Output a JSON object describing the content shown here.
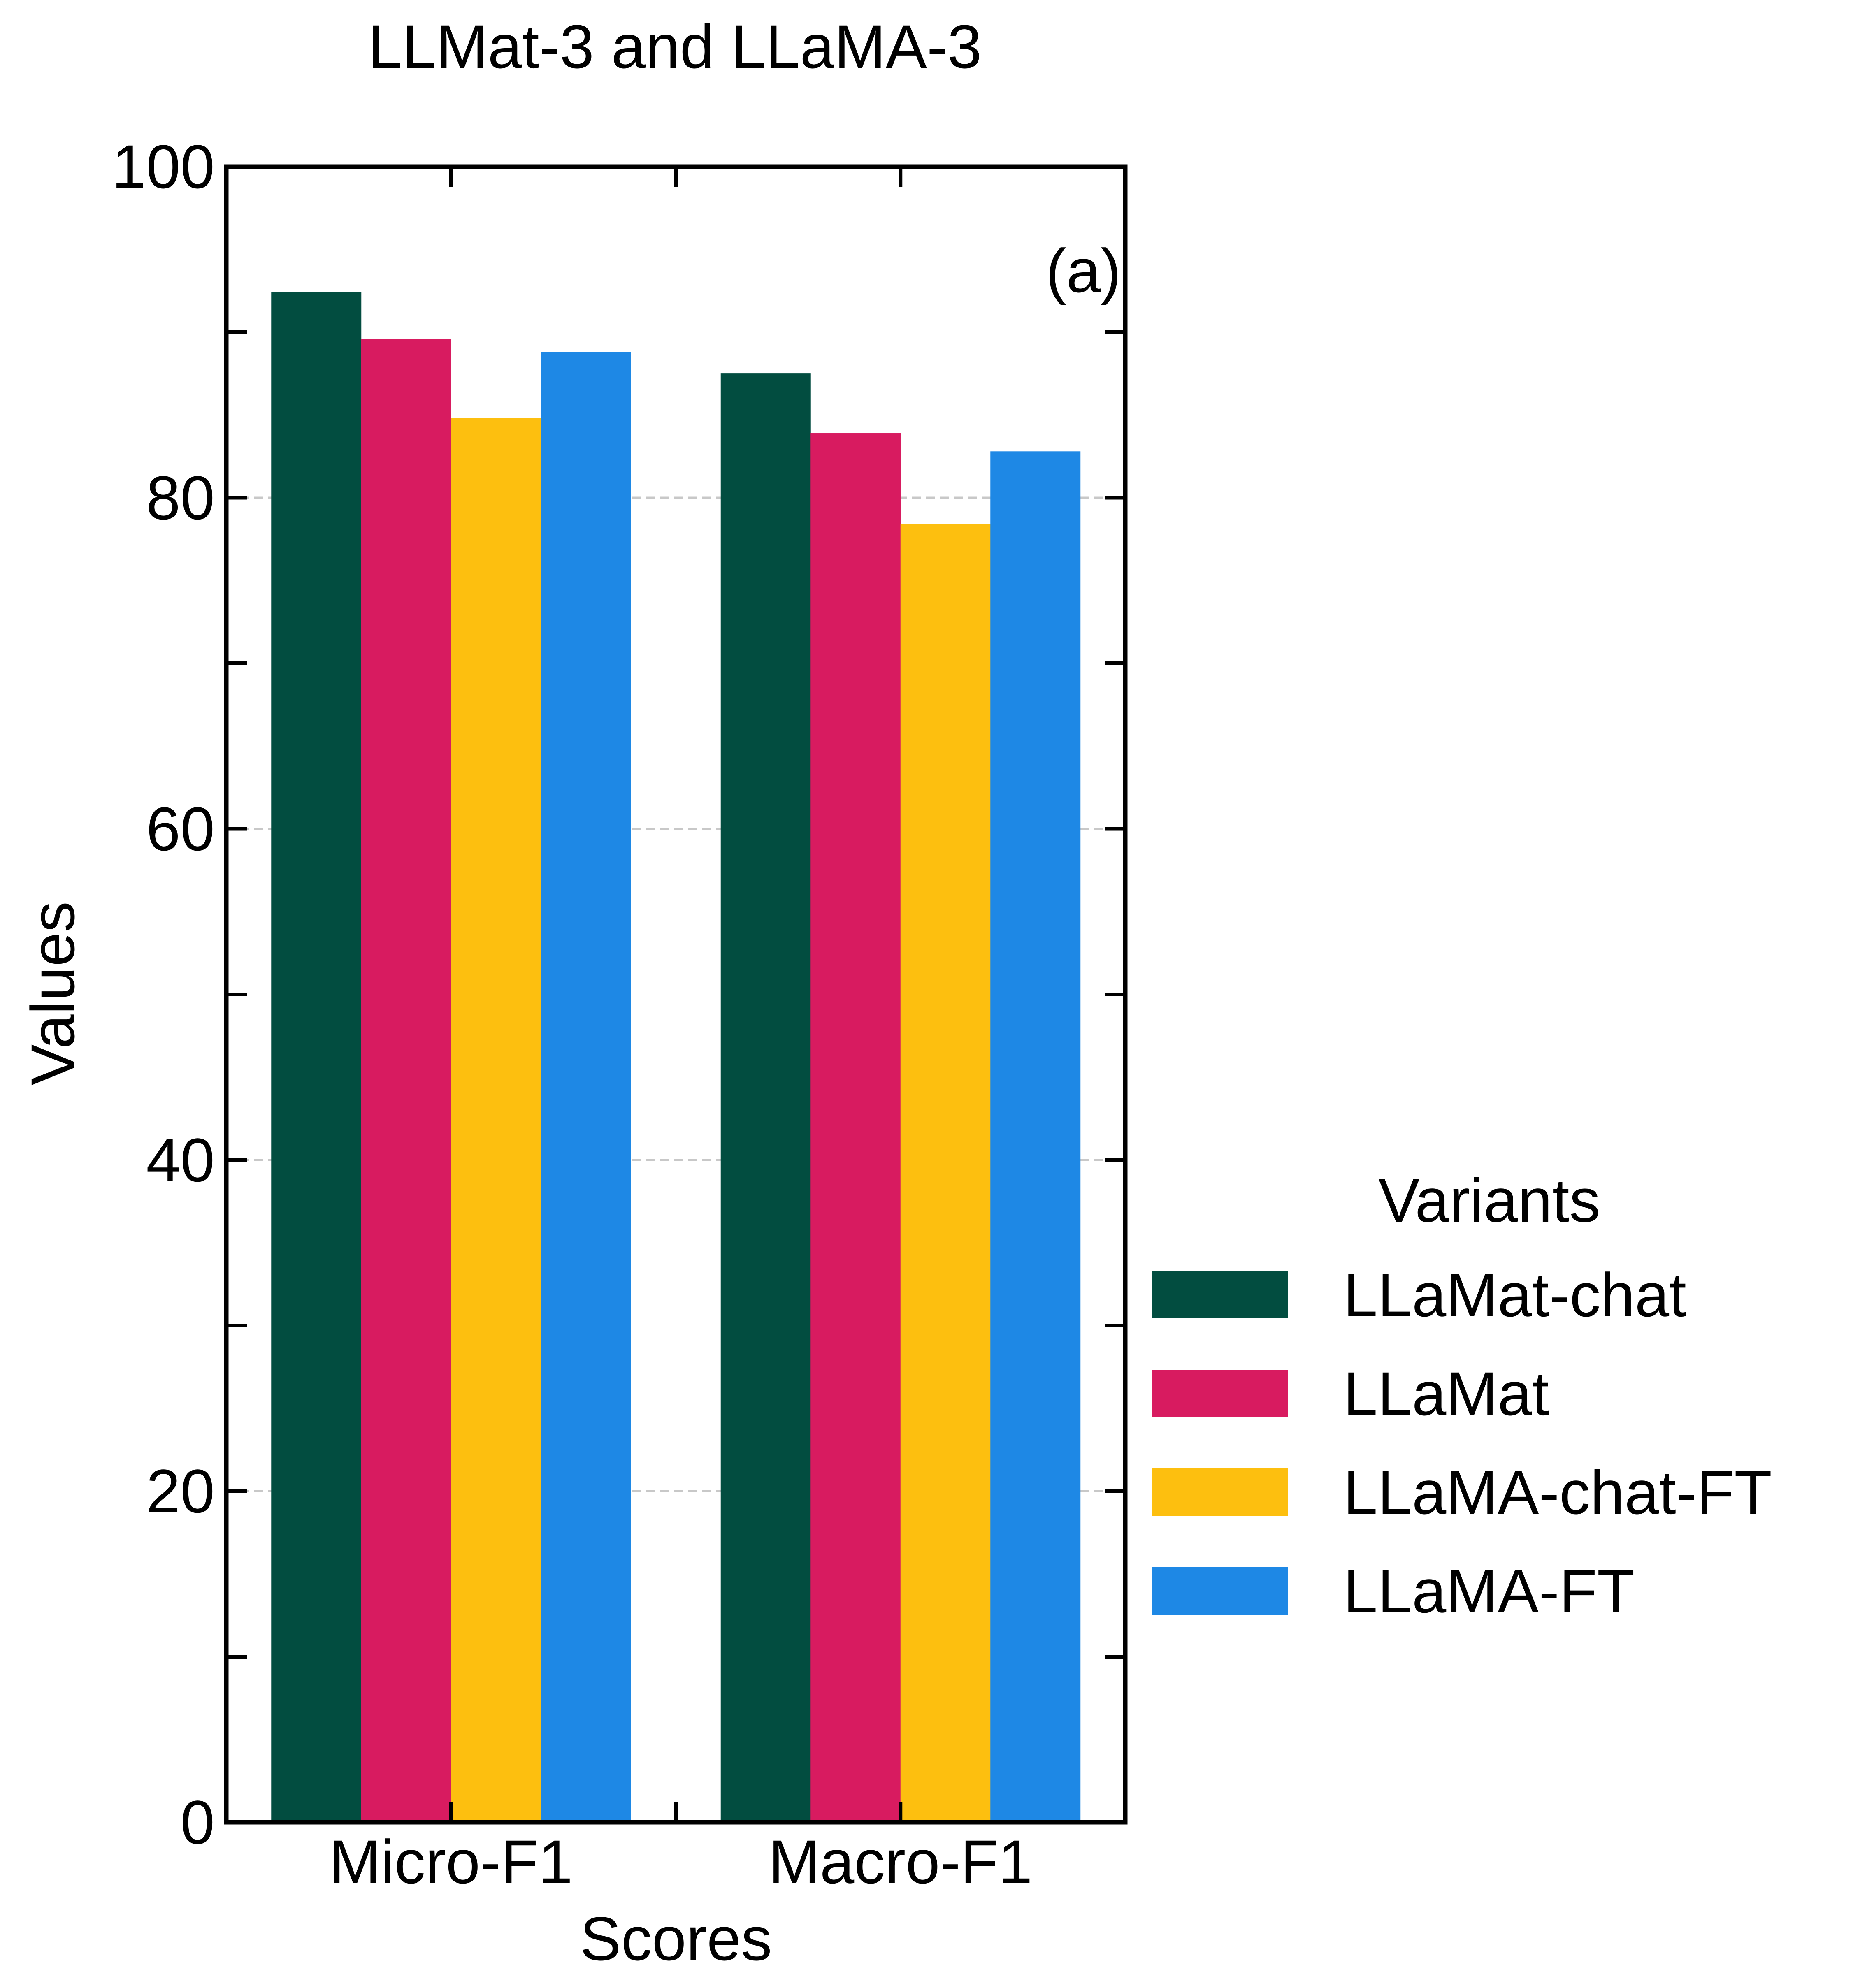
{
  "chart_data": {
    "type": "bar",
    "title": "LLMat-3 and LLaMA-3",
    "panel_label": "(a)",
    "xlabel": "Scores",
    "ylabel": "Values",
    "categories": [
      "Micro-F1",
      "Macro-F1"
    ],
    "ylim": [
      0,
      100
    ],
    "yticks": [
      0,
      20,
      40,
      60,
      80,
      100
    ],
    "grid": "horizontal dashed at labeled ticks",
    "legend": {
      "title": "Variants",
      "placement": "outside-right"
    },
    "series": [
      {
        "name": "LLaMat-chat",
        "color": "#024d40",
        "values": [
          92.4,
          87.5
        ]
      },
      {
        "name": "LLaMat",
        "color": "#d81b60",
        "values": [
          89.6,
          83.9
        ]
      },
      {
        "name": "LLaMA-chat-FT",
        "color": "#fdbf0f",
        "values": [
          84.8,
          78.4
        ]
      },
      {
        "name": "LLaMA-FT",
        "color": "#1e88e5",
        "values": [
          88.8,
          82.8
        ]
      }
    ]
  }
}
